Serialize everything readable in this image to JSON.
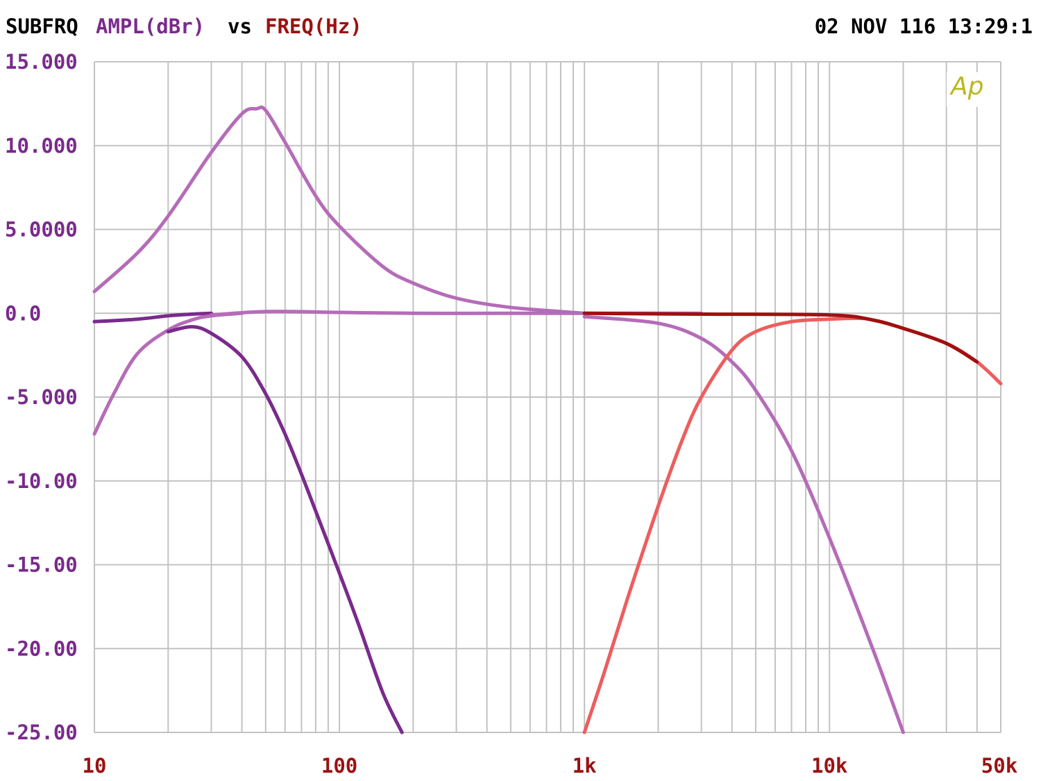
{
  "header": {
    "name": "SUBFRQ",
    "y_quantity": "AMPL(dBr)",
    "vs": "vs",
    "x_quantity": "FREQ(Hz)",
    "timestamp": "02 NOV 116 13:29:1"
  },
  "logo": {
    "text": "Ap"
  },
  "colors": {
    "black": "#000000",
    "purple_label": "#7a2a8c",
    "red_label": "#9b1111",
    "grid": "#c2c2c2",
    "logo": "#b8b820"
  },
  "chart_data": {
    "type": "line",
    "title": "",
    "xlabel": "FREQ(Hz)",
    "ylabel": "AMPL(dBr)",
    "x_scale": "log",
    "xlim": [
      10,
      50000
    ],
    "ylim": [
      -25,
      15
    ],
    "grid": true,
    "legend": "none",
    "y_ticks": [
      {
        "value": 15,
        "label": "15.000"
      },
      {
        "value": 10,
        "label": "10.000"
      },
      {
        "value": 5,
        "label": "5.0000"
      },
      {
        "value": 0,
        "label": "0.0"
      },
      {
        "value": -5,
        "label": "-5.000"
      },
      {
        "value": -10,
        "label": "-10.00"
      },
      {
        "value": -15,
        "label": "-15.00"
      },
      {
        "value": -20,
        "label": "-20.00"
      },
      {
        "value": -25,
        "label": "-25.00"
      }
    ],
    "x_ticks": [
      {
        "value": 10,
        "label": "10"
      },
      {
        "value": 100,
        "label": "100"
      },
      {
        "value": 1000,
        "label": "1k"
      },
      {
        "value": 10000,
        "label": "10k"
      },
      {
        "value": 50000,
        "label": "50k"
      }
    ],
    "series": [
      {
        "color": "#b56cb8",
        "x": [
          10,
          15,
          20,
          30,
          40,
          46,
          50,
          60,
          80,
          100,
          150,
          200,
          300,
          500,
          1000
        ],
        "y": [
          1.3,
          3.6,
          5.8,
          9.6,
          11.9,
          12.2,
          12.1,
          10.2,
          7.0,
          5.2,
          2.8,
          1.8,
          0.9,
          0.35,
          0.0
        ]
      },
      {
        "color": "#7a2a8c",
        "x": [
          10,
          15,
          20,
          25,
          30
        ],
        "y": [
          -0.5,
          -0.35,
          -0.15,
          -0.05,
          0.0
        ]
      },
      {
        "color": "#b56cb8",
        "x": [
          30,
          50,
          100,
          200,
          500,
          1000,
          2000,
          3000
        ],
        "y": [
          -0.1,
          0.1,
          0.05,
          0.0,
          0.0,
          0.0,
          0.0,
          0.0
        ]
      },
      {
        "color": "#b56cb8",
        "x": [
          10,
          12,
          15,
          20,
          25,
          30,
          40
        ],
        "y": [
          -7.2,
          -4.8,
          -2.4,
          -1.0,
          -0.4,
          -0.15,
          0.0
        ]
      },
      {
        "color": "#7a2a8c",
        "x": [
          20,
          25,
          30,
          40,
          50,
          60,
          70,
          80,
          100,
          120,
          150,
          180
        ],
        "y": [
          -1.1,
          -0.8,
          -1.2,
          -2.6,
          -4.8,
          -7.2,
          -9.6,
          -11.8,
          -15.5,
          -18.6,
          -22.6,
          -25.0
        ]
      },
      {
        "color": "#b56cb8",
        "x": [
          1000,
          2000,
          3000,
          4000,
          5000,
          7000,
          10000,
          15000,
          20000
        ],
        "y": [
          -0.2,
          -0.6,
          -1.5,
          -2.9,
          -4.6,
          -8.2,
          -13.4,
          -20.0,
          -25.0
        ]
      },
      {
        "color": "#ec5e5e",
        "x": [
          1000,
          1200,
          1500,
          2000,
          2500,
          3000,
          4000,
          5000,
          7000,
          10000,
          13000,
          15000,
          20000,
          30000,
          40000,
          50000
        ],
        "y": [
          -25.0,
          -21.5,
          -17.0,
          -11.5,
          -7.6,
          -5.0,
          -2.2,
          -1.1,
          -0.5,
          -0.35,
          -0.3,
          -0.4,
          -0.9,
          -1.8,
          -2.9,
          -4.2
        ]
      },
      {
        "color": "#a01010",
        "x": [
          1000,
          3000,
          10000,
          15000,
          20000,
          30000,
          40000
        ],
        "y": [
          0.0,
          -0.05,
          -0.1,
          -0.4,
          -0.9,
          -1.8,
          -2.9
        ]
      }
    ]
  }
}
